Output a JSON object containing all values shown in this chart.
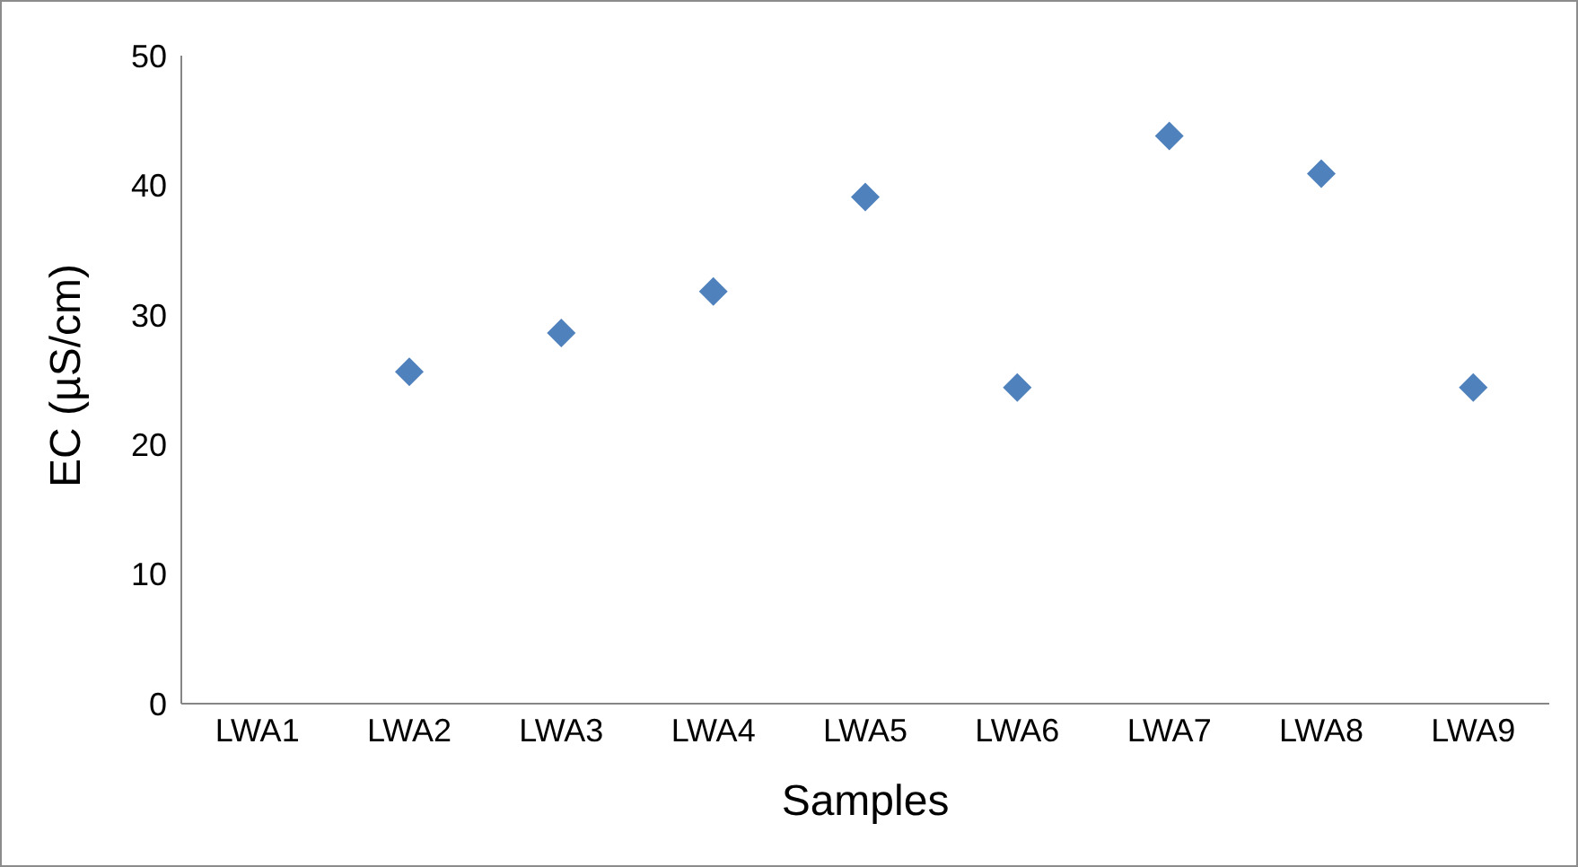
{
  "chart_data": {
    "type": "scatter",
    "xlabel": "Samples",
    "ylabel": "EC (µS/cm)",
    "categories": [
      "LWA1",
      "LWA2",
      "LWA3",
      "LWA4",
      "LWA5",
      "LWA6",
      "LWA7",
      "LWA8",
      "LWA9"
    ],
    "values": [
      null,
      25.6,
      28.6,
      31.8,
      39.1,
      24.4,
      43.8,
      40.9,
      24.4
    ],
    "color": "#4f81bd",
    "marker": "diamond",
    "ylim": [
      0,
      50
    ],
    "yticks": [
      0,
      10,
      20,
      30,
      40,
      50
    ],
    "grid": false,
    "legend": false
  }
}
